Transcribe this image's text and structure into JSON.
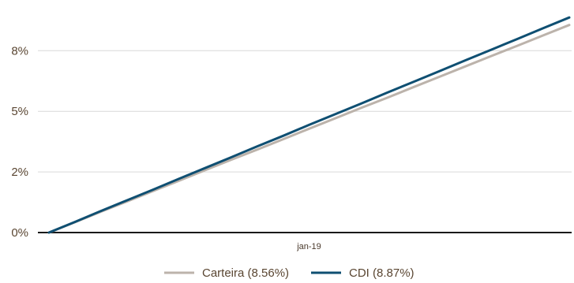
{
  "chart_data": {
    "type": "line",
    "title": "",
    "xlabel": "",
    "ylabel": "",
    "ylim": [
      0,
      9.2
    ],
    "y_ticks": [
      {
        "value": 0,
        "label": "0%"
      },
      {
        "value": 2.5,
        "label": "2%"
      },
      {
        "value": 5,
        "label": "5%"
      },
      {
        "value": 7.5,
        "label": "8%"
      }
    ],
    "x_tick_label": "jan-19",
    "grid": true,
    "legend_placement": "bottom-center",
    "series": [
      {
        "name": "Carteira (8.56%)",
        "color": "#bcb3ab",
        "x": [
          0,
          5,
          10,
          15,
          20,
          25,
          30,
          35,
          40,
          45,
          50,
          55,
          60,
          65,
          70,
          75,
          80,
          85,
          90,
          95,
          100
        ],
        "values": [
          0,
          0.43,
          0.86,
          1.28,
          1.71,
          2.14,
          2.57,
          3.0,
          3.42,
          3.85,
          4.28,
          4.71,
          5.14,
          5.56,
          5.99,
          6.42,
          6.85,
          7.28,
          7.7,
          8.13,
          8.56
        ]
      },
      {
        "name": "CDI (8.87%)",
        "color": "#0f4f72",
        "x": [
          0,
          5,
          10,
          15,
          20,
          25,
          30,
          35,
          40,
          45,
          50,
          55,
          60,
          65,
          70,
          75,
          80,
          85,
          90,
          95,
          100
        ],
        "values": [
          0,
          0.44,
          0.89,
          1.33,
          1.77,
          2.22,
          2.66,
          3.1,
          3.55,
          3.99,
          4.44,
          4.88,
          5.32,
          5.77,
          6.21,
          6.65,
          7.1,
          7.54,
          7.98,
          8.43,
          8.87
        ]
      }
    ]
  }
}
